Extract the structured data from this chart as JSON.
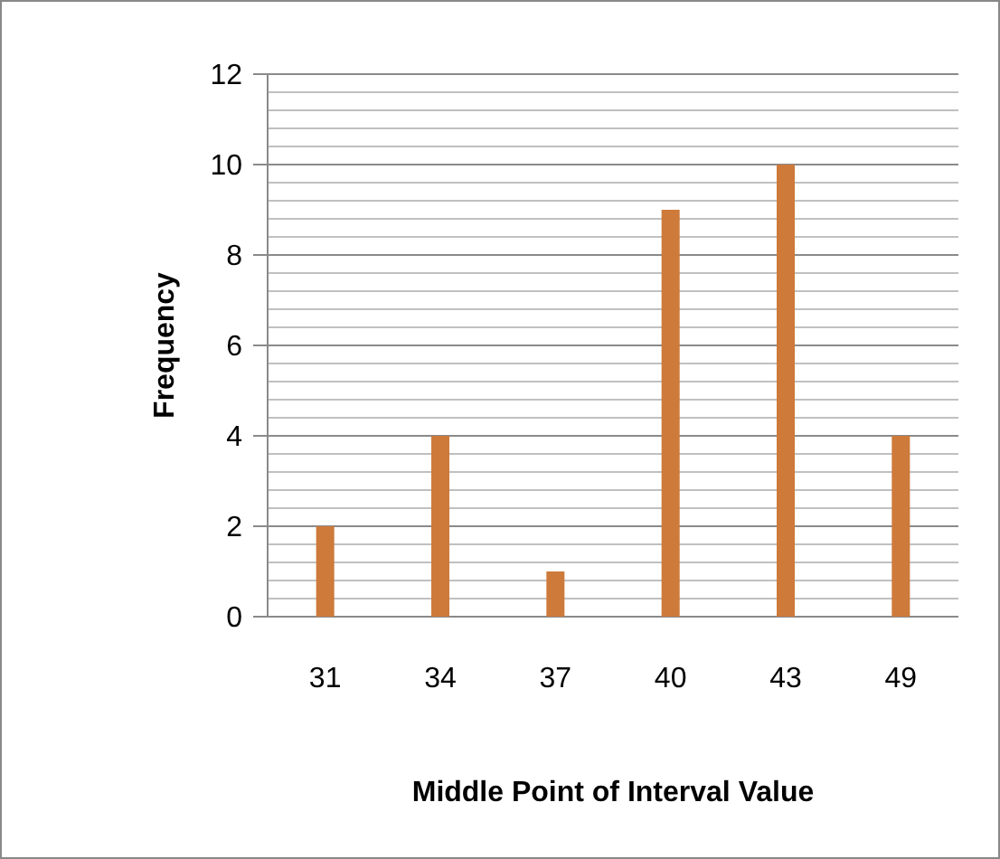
{
  "chart_data": {
    "type": "bar",
    "xlabel": "Middle Point of Interval Value",
    "ylabel": "Frequency",
    "categories": [
      "31",
      "34",
      "37",
      "40",
      "43",
      "49"
    ],
    "values": [
      2,
      4,
      1,
      9,
      10,
      4
    ],
    "color": "#cd7a3a",
    "ylim": [
      0,
      12
    ],
    "yticks": [
      0,
      2,
      4,
      6,
      8,
      10,
      12
    ],
    "grid": "y"
  }
}
